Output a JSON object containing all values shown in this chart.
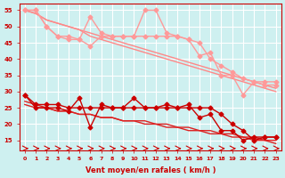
{
  "x": [
    0,
    1,
    2,
    3,
    4,
    5,
    6,
    7,
    8,
    9,
    10,
    11,
    12,
    13,
    14,
    15,
    16,
    17,
    18,
    19,
    20,
    21,
    22,
    23
  ],
  "line_upper1": [
    55,
    55,
    50,
    47,
    46,
    46,
    53,
    48,
    47,
    47,
    47,
    55,
    55,
    48,
    47,
    46,
    41,
    42,
    35,
    35,
    29,
    33,
    33,
    33
  ],
  "line_upper2": [
    55,
    55,
    50,
    47,
    47,
    46,
    44,
    47,
    47,
    47,
    47,
    47,
    47,
    47,
    47,
    46,
    45,
    40,
    38,
    36,
    34,
    33,
    32,
    32
  ],
  "trend_upper1": [
    55,
    54,
    52,
    51,
    50,
    49,
    47,
    46,
    45,
    44,
    43,
    42,
    41,
    40,
    39,
    38,
    37,
    36,
    35,
    34,
    33,
    32,
    31,
    30
  ],
  "trend_upper2": [
    55,
    54,
    52,
    51,
    50,
    49,
    48,
    47,
    46,
    45,
    44,
    43,
    42,
    41,
    40,
    39,
    38,
    37,
    36,
    35,
    34,
    33,
    32,
    31
  ],
  "line_lower1": [
    29,
    25,
    25,
    25,
    24,
    28,
    19,
    26,
    25,
    25,
    28,
    25,
    25,
    26,
    25,
    26,
    22,
    23,
    18,
    18,
    15,
    16,
    16,
    16
  ],
  "line_lower2": [
    29,
    26,
    26,
    26,
    25,
    25,
    25,
    25,
    25,
    25,
    25,
    25,
    25,
    25,
    25,
    25,
    25,
    25,
    23,
    20,
    18,
    15,
    16,
    16
  ],
  "trend_lower1": [
    27,
    26,
    25,
    24,
    24,
    23,
    23,
    22,
    22,
    21,
    21,
    20,
    20,
    19,
    19,
    18,
    18,
    17,
    17,
    16,
    16,
    15,
    15,
    14
  ],
  "trend_lower2": [
    26,
    25,
    25,
    24,
    24,
    23,
    23,
    22,
    22,
    21,
    21,
    21,
    20,
    20,
    19,
    19,
    18,
    18,
    17,
    17,
    16,
    16,
    15,
    15
  ],
  "wind_dir": [
    1,
    1,
    1,
    1,
    1,
    1,
    1,
    1,
    1,
    1,
    1,
    1,
    1,
    1,
    1,
    1,
    1,
    1,
    1,
    1,
    1,
    1,
    1,
    1
  ],
  "xlabel": "Vent moyen/en rafales ( km/h )",
  "yticks": [
    15,
    20,
    25,
    30,
    35,
    40,
    45,
    50,
    55
  ],
  "xticks": [
    0,
    1,
    2,
    3,
    4,
    5,
    6,
    7,
    8,
    9,
    10,
    11,
    12,
    13,
    14,
    15,
    16,
    17,
    18,
    19,
    20,
    21,
    22,
    23
  ],
  "bg_color": "#cef0f0",
  "grid_color": "#ffffff",
  "pink_color": "#ff9999",
  "dark_red_color": "#cc0000",
  "trend_pink": "#ff8888",
  "trend_red": "#dd2222"
}
